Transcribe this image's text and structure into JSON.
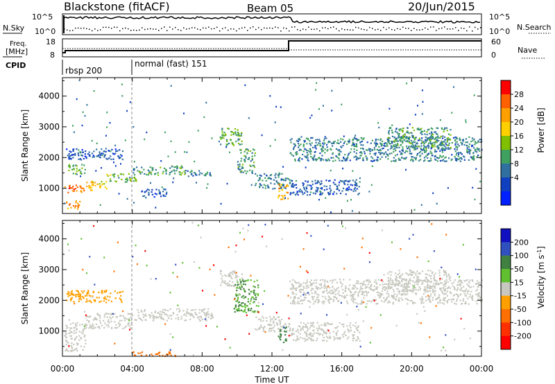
{
  "header": {
    "station": "Blackstone (fitACF)",
    "beam": "Beam 05",
    "date": "20/Jun/2015"
  },
  "noise_panel": {
    "left_label": "N.Sky",
    "right_label": "N.Search",
    "ticks_left": [
      "10^5",
      "10^0"
    ],
    "ticks_right": [
      "10^5",
      "10^0"
    ]
  },
  "freq_panel": {
    "left_label_1": "Freq.",
    "left_label_2": "[MHz]",
    "right_label": "Nave",
    "ticks_left": [
      "18",
      "8"
    ],
    "ticks_right": [
      "60",
      "0"
    ],
    "cpid_label": "CPID",
    "modes": [
      {
        "label": "rbsp 200"
      },
      {
        "label": "normal (fast) 151"
      }
    ]
  },
  "chart_data": [
    {
      "type": "heatmap",
      "title": "",
      "xlabel": "Time UT",
      "ylabel": "Slant Range [km]",
      "xlim": [
        0,
        24
      ],
      "ylim": [
        180,
        4600
      ],
      "x_ticks": [
        {
          "value": 0,
          "label": "00:00"
        },
        {
          "value": 4,
          "label": "04:00"
        },
        {
          "value": 8,
          "label": "08:00"
        },
        {
          "value": 12,
          "label": "12:00"
        },
        {
          "value": 16,
          "label": "16:00"
        },
        {
          "value": 20,
          "label": "20:00"
        },
        {
          "value": 24,
          "label": "00:00"
        }
      ],
      "y_ticks": [
        {
          "value": 1000,
          "label": "1000"
        },
        {
          "value": 2000,
          "label": "2000"
        },
        {
          "value": 3000,
          "label": "3000"
        },
        {
          "value": 4000,
          "label": "4000"
        }
      ],
      "colorbar": {
        "label": "Power [dB]",
        "ticks": [
          "28",
          "24",
          "20",
          "16",
          "12",
          "8",
          "4"
        ],
        "colors": [
          "#ff0000",
          "#ff6000",
          "#ffa000",
          "#ffd000",
          "#80c000",
          "#40a060",
          "#3070a0",
          "#1040c0",
          "#0020ff"
        ]
      },
      "features": [
        {
          "t0": 0.1,
          "t1": 1.2,
          "r0": 850,
          "r1": 1150,
          "level": 26
        },
        {
          "t0": 0.2,
          "t1": 1.0,
          "r0": 350,
          "r1": 650,
          "level": 24
        },
        {
          "t0": 1.2,
          "t1": 2.5,
          "r0": 950,
          "r1": 1250,
          "level": 20
        },
        {
          "t0": 2.5,
          "t1": 4.2,
          "r0": 1200,
          "r1": 1500,
          "level": 14
        },
        {
          "t0": 0.3,
          "t1": 1.3,
          "r0": 1450,
          "r1": 1800,
          "level": 14
        },
        {
          "t0": 4.0,
          "t1": 7.0,
          "r0": 1450,
          "r1": 1750,
          "level": 12
        },
        {
          "t0": 7.0,
          "t1": 8.6,
          "r0": 1400,
          "r1": 1600,
          "level": 10
        },
        {
          "t0": 0.2,
          "t1": 3.5,
          "r0": 1950,
          "r1": 2300,
          "level": 7
        },
        {
          "t0": 9.0,
          "t1": 10.3,
          "r0": 2400,
          "r1": 3000,
          "level": 14
        },
        {
          "t0": 10.0,
          "t1": 11.0,
          "r0": 1500,
          "r1": 2300,
          "level": 12
        },
        {
          "t0": 11.0,
          "t1": 13.0,
          "r0": 1000,
          "r1": 1500,
          "level": 10
        },
        {
          "t0": 12.3,
          "t1": 12.9,
          "r0": 650,
          "r1": 1150,
          "level": 22
        },
        {
          "t0": 13.0,
          "t1": 24.0,
          "r0": 1900,
          "r1": 2700,
          "level": 10
        },
        {
          "t0": 18.6,
          "t1": 22.2,
          "r0": 2300,
          "r1": 3000,
          "level": 12
        },
        {
          "t0": 13.0,
          "t1": 17.0,
          "r0": 800,
          "r1": 1300,
          "level": 7
        },
        {
          "t0": 4.5,
          "t1": 6.0,
          "r0": 700,
          "r1": 1000,
          "level": 6
        }
      ]
    },
    {
      "type": "heatmap",
      "title": "",
      "xlabel": "Time UT",
      "ylabel": "Slant Range [km]",
      "xlim": [
        0,
        24
      ],
      "ylim": [
        180,
        4600
      ],
      "x_ticks": [
        {
          "value": 0,
          "label": "00:00"
        },
        {
          "value": 4,
          "label": "04:00"
        },
        {
          "value": 8,
          "label": "08:00"
        },
        {
          "value": 12,
          "label": "12:00"
        },
        {
          "value": 16,
          "label": "16:00"
        },
        {
          "value": 20,
          "label": "20:00"
        },
        {
          "value": 24,
          "label": "00:00"
        }
      ],
      "y_ticks": [
        {
          "value": 1000,
          "label": "1000"
        },
        {
          "value": 2000,
          "label": "2000"
        },
        {
          "value": 3000,
          "label": "3000"
        },
        {
          "value": 4000,
          "label": "4000"
        }
      ],
      "colorbar": {
        "label": "Velocity [m s",
        "label_sup": "-1",
        "label_close": "]",
        "ticks": [
          "200",
          "100",
          "50",
          "15",
          "-15",
          "-50",
          "-100",
          "-200"
        ],
        "colors": [
          "#1010c0",
          "#3050c0",
          "#408040",
          "#60c030",
          "#c8c8c0",
          "#ffa000",
          "#ff7000",
          "#ff3000",
          "#ff0000"
        ]
      },
      "features": [
        {
          "t0": 0.1,
          "t1": 1.3,
          "r0": 350,
          "r1": 1300,
          "level": 0
        },
        {
          "t0": 1.3,
          "t1": 4.0,
          "r0": 1100,
          "r1": 1600,
          "level": 0
        },
        {
          "t0": 4.0,
          "t1": 8.6,
          "r0": 1350,
          "r1": 1750,
          "level": 0
        },
        {
          "t0": 0.2,
          "t1": 3.5,
          "r0": 1950,
          "r1": 2350,
          "level": -45
        },
        {
          "t0": 9.0,
          "t1": 10.3,
          "r0": 2400,
          "r1": 3000,
          "level": 0
        },
        {
          "t0": 9.8,
          "t1": 11.2,
          "r0": 1600,
          "r1": 2700,
          "level": 30
        },
        {
          "t0": 11.0,
          "t1": 13.0,
          "r0": 1000,
          "r1": 1500,
          "level": 0
        },
        {
          "t0": 12.3,
          "t1": 12.8,
          "r0": 650,
          "r1": 1150,
          "level": 35
        },
        {
          "t0": 13.0,
          "t1": 24.0,
          "r0": 1900,
          "r1": 2700,
          "level": 0
        },
        {
          "t0": 18.6,
          "t1": 22.2,
          "r0": 2300,
          "r1": 3000,
          "level": 0
        },
        {
          "t0": 13.0,
          "t1": 17.0,
          "r0": 700,
          "r1": 1300,
          "level": 0
        },
        {
          "t0": 4.0,
          "t1": 6.5,
          "r0": 200,
          "r1": 350,
          "level": -80
        }
      ]
    }
  ]
}
